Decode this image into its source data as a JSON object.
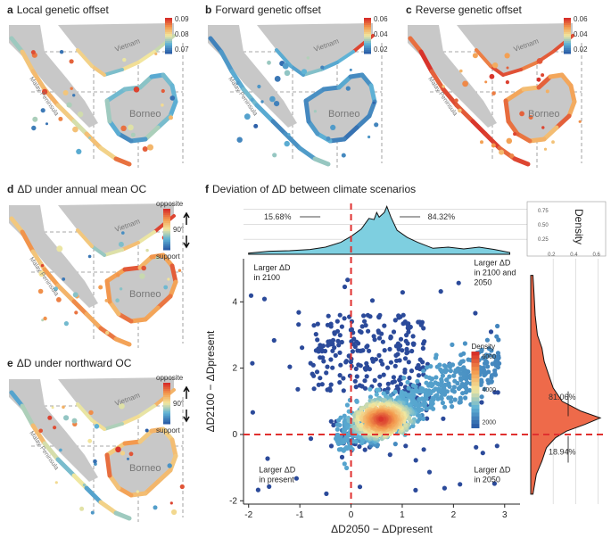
{
  "panels": {
    "a": {
      "letter": "a",
      "title": "Local genetic offset",
      "colorbar_ticks": [
        "0.09",
        "0.08",
        "0.07"
      ]
    },
    "b": {
      "letter": "b",
      "title": "Forward genetic offset",
      "colorbar_ticks": [
        "0.06",
        "0.04",
        "0.02"
      ]
    },
    "c": {
      "letter": "c",
      "title": "Reverse genetic offset",
      "colorbar_ticks": [
        "0.06",
        "0.04",
        "0.02"
      ]
    },
    "d": {
      "letter": "d",
      "title": "ΔD under annual mean OC",
      "legend_top": "opposite",
      "legend_mid": "90°",
      "legend_bottom": "support"
    },
    "e": {
      "letter": "e",
      "title": "ΔD under northward OC",
      "legend_top": "opposite",
      "legend_mid": "90°",
      "legend_bottom": "support"
    },
    "f": {
      "letter": "f",
      "title": "Deviation of ΔD between climate scenarios"
    }
  },
  "map_labels": {
    "vietnam": "Vietnam",
    "malay": "Malay Peninsula",
    "borneo": "Borneo"
  },
  "colors": {
    "land": "#c8c8c8",
    "low": "#2c5fa8",
    "mid": "#f2e8a0",
    "high": "#d7302a",
    "density_fill": "#7ecfe0",
    "hist_fill": "#ee6a4a",
    "dashed": "#e0302f",
    "scatter_base": "#2b4a9a"
  },
  "chart_data": {
    "type": "scatter",
    "xlabel": "ΔD2050 − ΔDpresent",
    "ylabel": "ΔD2100 − ΔDpresent",
    "xlim": [
      -2.1,
      3.3
    ],
    "ylim": [
      -2.1,
      5.3
    ],
    "x_ticks": [
      "-2",
      "-1",
      "0",
      "1",
      "2",
      "3"
    ],
    "y_ticks": [
      "-2",
      "0",
      "2",
      "4"
    ],
    "reference_lines": {
      "x": 0,
      "y": 0
    },
    "quadrant_labels": {
      "top_left": [
        "Larger ΔD",
        "in 2100"
      ],
      "top_right": [
        "Larger ΔD",
        "in 2100 and",
        "2050"
      ],
      "bottom_left": [
        "Larger ΔD",
        "in present"
      ],
      "bottom_right": [
        "Larger ΔD",
        "in 2050"
      ]
    },
    "top_density": {
      "left_pct": "15.68%",
      "right_pct": "84.32%",
      "x": [
        -2.0,
        -1.6,
        -1.2,
        -0.8,
        -0.5,
        -0.2,
        0.0,
        0.2,
        0.35,
        0.45,
        0.5,
        0.55,
        0.65,
        0.7,
        0.78,
        0.9,
        1.1,
        1.3,
        1.6,
        1.9,
        2.2,
        2.5,
        2.8,
        3.1
      ],
      "y": [
        0.02,
        0.05,
        0.06,
        0.08,
        0.12,
        0.2,
        0.3,
        0.42,
        0.6,
        0.58,
        0.7,
        0.62,
        0.7,
        0.8,
        0.62,
        0.4,
        0.28,
        0.2,
        0.1,
        0.12,
        0.09,
        0.12,
        0.08,
        0.03
      ]
    },
    "right_hist": {
      "top_pct": "81.06%",
      "bottom_pct": "18.94%",
      "y": [
        -1.8,
        -1.2,
        -0.8,
        -0.4,
        -0.1,
        0.1,
        0.3,
        0.5,
        0.7,
        1.0,
        1.4,
        1.8,
        2.2,
        2.6,
        3.0,
        3.6,
        4.2,
        4.8
      ],
      "density": [
        0.02,
        0.05,
        0.1,
        0.14,
        0.22,
        0.32,
        0.48,
        0.62,
        0.45,
        0.28,
        0.2,
        0.16,
        0.12,
        0.1,
        0.06,
        0.04,
        0.03,
        0.02
      ]
    },
    "density_axis": {
      "label": "Density",
      "ticks_vertical": [
        "0.75",
        "0.50",
        "0.25"
      ],
      "ticks_horizontal": [
        "0.2",
        "0.4",
        "0.6"
      ]
    },
    "colorbar": {
      "label": "Density",
      "ticks": [
        "6000",
        "4000",
        "2000"
      ]
    }
  }
}
